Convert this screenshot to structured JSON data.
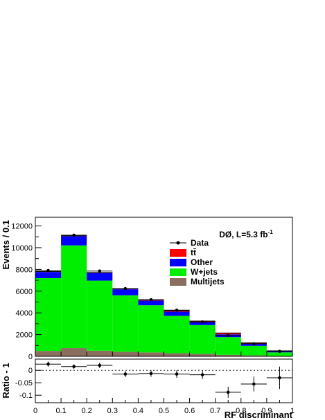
{
  "chart_data": [
    {
      "type": "bar",
      "stacked": true,
      "categories": [
        "0-0.1",
        "0.1-0.2",
        "0.2-0.3",
        "0.3-0.4",
        "0.4-0.5",
        "0.5-0.6",
        "0.6-0.7",
        "0.7-0.8",
        "0.8-0.9",
        "0.9-1"
      ],
      "bin_edges": [
        0,
        0.1,
        0.2,
        0.3,
        0.4,
        0.5,
        0.6,
        0.7,
        0.8,
        0.9,
        1.0
      ],
      "ylabel": "Events / 0.1",
      "ylim": [
        0,
        12800
      ],
      "yticks": [
        0,
        2000,
        4000,
        6000,
        8000,
        10000,
        12000
      ],
      "annotation": "DØ, L=5.3 fb",
      "annotation_sup": "-1",
      "legend_position": "top-right",
      "series": [
        {
          "name": "Multijets",
          "color": "#8b6f5e",
          "values": [
            500,
            760,
            520,
            420,
            360,
            290,
            230,
            140,
            90,
            35
          ]
        },
        {
          "name": "W+jets",
          "color": "#00ee00",
          "values": [
            6700,
            9450,
            6450,
            5200,
            4340,
            3440,
            2650,
            1630,
            880,
            330
          ]
        },
        {
          "name": "Other",
          "color": "#0000ff",
          "values": [
            560,
            850,
            700,
            550,
            430,
            380,
            260,
            250,
            170,
            90
          ]
        },
        {
          "name": "tt̄",
          "color": "#ff0000",
          "values": [
            40,
            40,
            40,
            40,
            70,
            90,
            110,
            130,
            100,
            55
          ]
        }
      ],
      "data": {
        "name": "Data",
        "x": [
          0.05,
          0.15,
          0.25,
          0.35,
          0.45,
          0.55,
          0.65,
          0.75,
          0.85,
          0.95
        ],
        "y": [
          7900,
          11150,
          7850,
          6230,
          5210,
          4250,
          3170,
          1920,
          1160,
          460
        ]
      },
      "grid": false
    },
    {
      "type": "scatter",
      "xlabel": "RF discriminant",
      "ylabel": "Ratio - 1",
      "xlim": [
        0,
        1
      ],
      "ylim": [
        -0.13,
        0.045
      ],
      "xticks": [
        0,
        0.1,
        0.2,
        0.3,
        0.4,
        0.5,
        0.6,
        0.7,
        0.8,
        0.9,
        1
      ],
      "xtick_labels": [
        "0",
        "0.1",
        "0.2",
        "0.3",
        "0.4",
        "0.5",
        "0.6",
        "0.7",
        "0.8",
        "0.9",
        "1"
      ],
      "yticks": [
        0,
        -0.05,
        -0.1
      ],
      "ytick_labels": [
        "0",
        "-0.05",
        "-0.1"
      ],
      "reference_line": 0,
      "points": {
        "x": [
          0.05,
          0.15,
          0.25,
          0.35,
          0.45,
          0.55,
          0.65,
          0.75,
          0.85,
          0.95
        ],
        "y": [
          0.025,
          0.015,
          0.02,
          -0.015,
          -0.013,
          -0.015,
          -0.018,
          -0.088,
          -0.055,
          -0.03
        ],
        "err": [
          0.01,
          0.009,
          0.011,
          0.012,
          0.013,
          0.015,
          0.017,
          0.022,
          0.03,
          0.045
        ]
      },
      "grid": false
    }
  ]
}
